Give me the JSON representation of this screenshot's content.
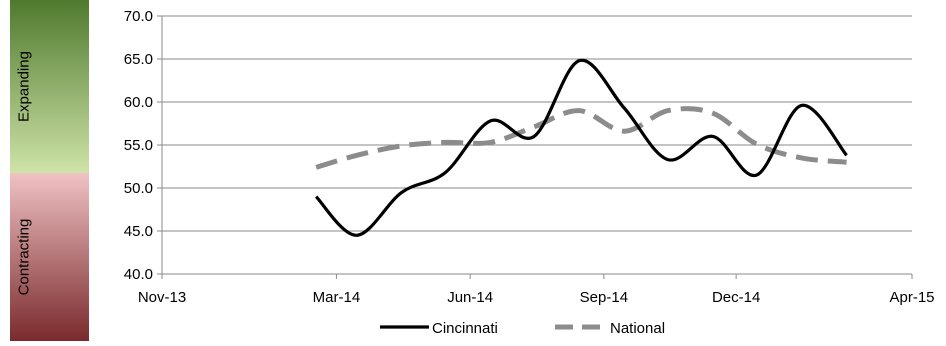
{
  "chart_data": {
    "type": "line",
    "title": "",
    "xlabel": "",
    "ylabel": "",
    "x_tick_labels": [
      "Nov-13",
      "Mar-14",
      "Jun-14",
      "Sep-14",
      "Dec-14",
      "Apr-15"
    ],
    "y_tick_labels": [
      "40.0",
      "45.0",
      "50.0",
      "55.0",
      "60.0",
      "65.0",
      "70.0"
    ],
    "ylim": [
      40,
      70
    ],
    "xlim": [
      "2013-11-01",
      "2015-04-01"
    ],
    "grid": true,
    "legend_position": "bottom",
    "band_labels": {
      "upper": "Expanding",
      "lower": "Contracting"
    },
    "band_colors": {
      "expanding_top": "#4f7a2e",
      "expanding_bottom": "#cfe3a8",
      "contracting_top": "#efc2c4",
      "contracting_bottom": "#7a2a2c"
    },
    "band_threshold": 50,
    "series": [
      {
        "name": "Cincinnati",
        "color": "#000000",
        "dash": "solid",
        "points": [
          {
            "x": "2014-02-15",
            "y": 49.0
          },
          {
            "x": "2014-03-15",
            "y": 44.5
          },
          {
            "x": "2014-04-15",
            "y": 49.5
          },
          {
            "x": "2014-05-15",
            "y": 51.8
          },
          {
            "x": "2014-06-15",
            "y": 57.8
          },
          {
            "x": "2014-07-15",
            "y": 56.0
          },
          {
            "x": "2014-08-15",
            "y": 64.8
          },
          {
            "x": "2014-09-15",
            "y": 59.3
          },
          {
            "x": "2014-10-15",
            "y": 53.3
          },
          {
            "x": "2014-11-15",
            "y": 56.0
          },
          {
            "x": "2014-12-15",
            "y": 51.5
          },
          {
            "x": "2015-01-15",
            "y": 59.6
          },
          {
            "x": "2015-02-15",
            "y": 53.8
          }
        ]
      },
      {
        "name": "National",
        "color": "#8c8c8c",
        "dash": "dashed",
        "points": [
          {
            "x": "2014-02-15",
            "y": 52.4
          },
          {
            "x": "2014-03-15",
            "y": 53.8
          },
          {
            "x": "2014-04-15",
            "y": 54.9
          },
          {
            "x": "2014-05-15",
            "y": 55.3
          },
          {
            "x": "2014-06-15",
            "y": 55.3
          },
          {
            "x": "2014-07-15",
            "y": 57.1
          },
          {
            "x": "2014-08-15",
            "y": 59.0
          },
          {
            "x": "2014-09-15",
            "y": 56.6
          },
          {
            "x": "2014-10-15",
            "y": 59.0
          },
          {
            "x": "2014-11-15",
            "y": 58.7
          },
          {
            "x": "2014-12-15",
            "y": 55.1
          },
          {
            "x": "2015-01-15",
            "y": 53.5
          },
          {
            "x": "2015-02-15",
            "y": 53.0
          }
        ]
      }
    ]
  }
}
